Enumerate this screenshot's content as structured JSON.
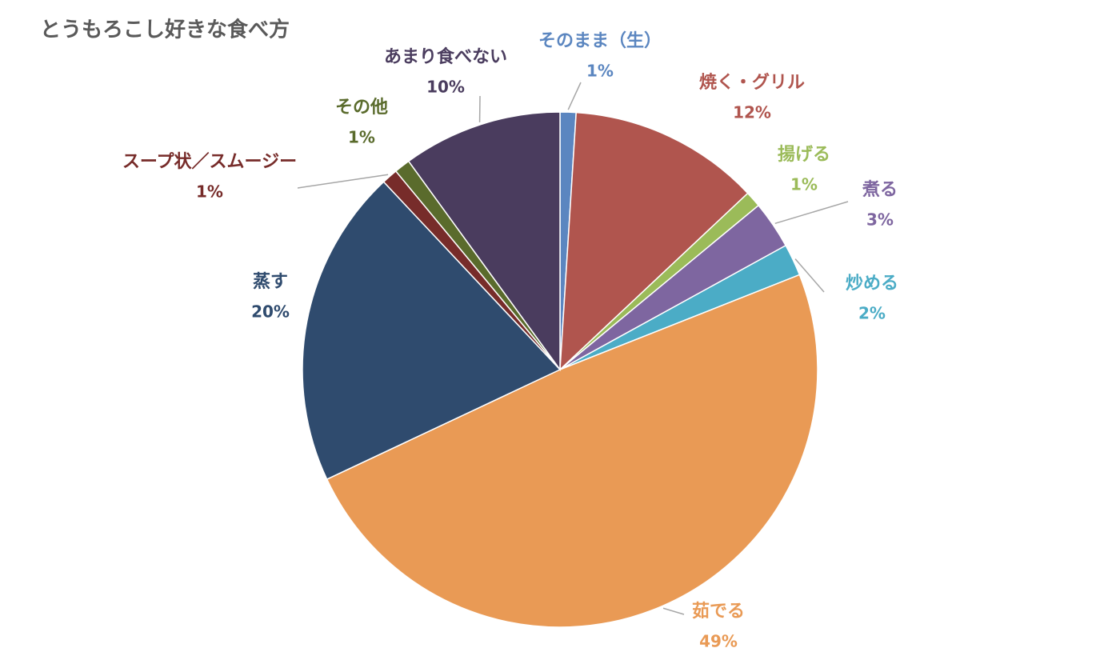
{
  "chart_data": {
    "type": "pie",
    "title": "とうもろこし好きな食べ方",
    "categories": [
      "そのまま（生）",
      "焼く・グリル",
      "揚げる",
      "煮る",
      "炒める",
      "茹でる",
      "蒸す",
      "スープ状／スムージー",
      "その他",
      "あまり食べない"
    ],
    "values": [
      1,
      12,
      1,
      3,
      2,
      49,
      20,
      1,
      1,
      10
    ],
    "value_labels": [
      "1%",
      "12%",
      "1%",
      "3%",
      "2%",
      "49%",
      "20%",
      "1%",
      "1%",
      "10%"
    ],
    "colors": [
      "#5b86c0",
      "#b0554e",
      "#9bbb59",
      "#7e66a0",
      "#4bacc6",
      "#e99a55",
      "#2f4b6e",
      "#772c2a",
      "#5a6b2c",
      "#4a3c5e"
    ]
  }
}
